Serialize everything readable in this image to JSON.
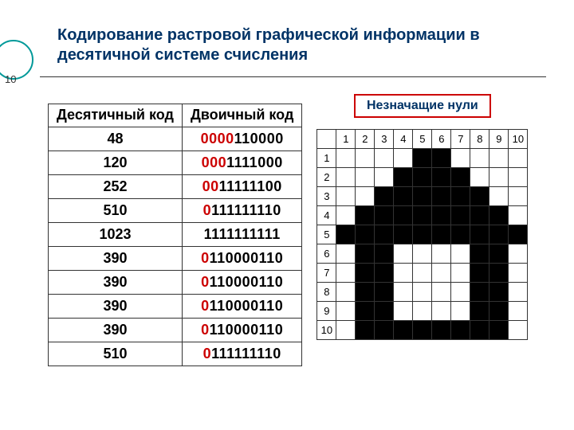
{
  "page_number": "10",
  "title": "Кодирование растровой графической информации в десятичной системе счисления",
  "callout": "Незначащие нули",
  "table": {
    "headers": {
      "dec": "Десятичный код",
      "bin": "Двоичный код"
    },
    "rows": [
      {
        "dec": "48",
        "lead": "0000",
        "rest": "110000"
      },
      {
        "dec": "120",
        "lead": "000",
        "rest": "1111000"
      },
      {
        "dec": "252",
        "lead": "00",
        "rest": "11111100"
      },
      {
        "dec": "510",
        "lead": "0",
        "rest": "111111110"
      },
      {
        "dec": "1023",
        "lead": "",
        "rest": "1111111111"
      },
      {
        "dec": "390",
        "lead": "0",
        "rest": "110000110"
      },
      {
        "dec": "390",
        "lead": "0",
        "rest": "110000110"
      },
      {
        "dec": "390",
        "lead": "0",
        "rest": "110000110"
      },
      {
        "dec": "390",
        "lead": "0",
        "rest": "110000110"
      },
      {
        "dec": "510",
        "lead": "0",
        "rest": "111111110"
      }
    ]
  },
  "bitmap": {
    "cols": 10,
    "rows": 10,
    "col_labels": [
      "1",
      "2",
      "3",
      "4",
      "5",
      "6",
      "7",
      "8",
      "9",
      "10"
    ],
    "row_labels": [
      "1",
      "2",
      "3",
      "4",
      "5",
      "6",
      "7",
      "8",
      "9",
      "10"
    ],
    "grid": [
      [
        0,
        0,
        0,
        0,
        1,
        1,
        0,
        0,
        0,
        0
      ],
      [
        0,
        0,
        0,
        1,
        1,
        1,
        1,
        0,
        0,
        0
      ],
      [
        0,
        0,
        1,
        1,
        1,
        1,
        1,
        1,
        0,
        0
      ],
      [
        0,
        1,
        1,
        1,
        1,
        1,
        1,
        1,
        1,
        0
      ],
      [
        1,
        1,
        1,
        1,
        1,
        1,
        1,
        1,
        1,
        1
      ],
      [
        0,
        1,
        1,
        0,
        0,
        0,
        0,
        1,
        1,
        0
      ],
      [
        0,
        1,
        1,
        0,
        0,
        0,
        0,
        1,
        1,
        0
      ],
      [
        0,
        1,
        1,
        0,
        0,
        0,
        0,
        1,
        1,
        0
      ],
      [
        0,
        1,
        1,
        0,
        0,
        0,
        0,
        1,
        1,
        0
      ],
      [
        0,
        1,
        1,
        1,
        1,
        1,
        1,
        1,
        1,
        0
      ]
    ]
  },
  "colors": {
    "title": "#003366",
    "lead_zero": "#cc0000",
    "callout_border": "#cc0000",
    "cell_on": "#000000",
    "cell_off": "#ffffff",
    "circle": "#009999"
  }
}
